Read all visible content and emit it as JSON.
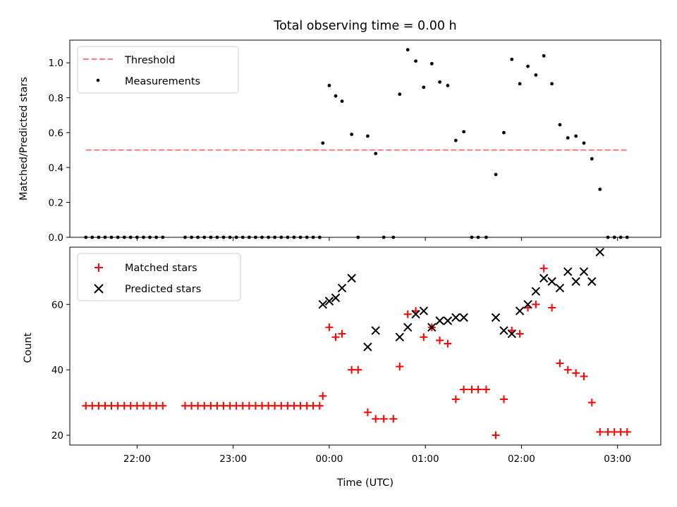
{
  "title": "Total observing time = 0.00 h",
  "colors": {
    "threshold": "#ff7f7f",
    "measurement": "#000000",
    "matched": "#ff0000",
    "predicted": "#000000"
  },
  "chart_data": [
    {
      "type": "scatter",
      "xlabel": "",
      "ylabel": "Matched/Predicted stars",
      "x_unit": "UTC time (hours, axis ticks 22:00 to 03:00)",
      "xlim": [
        21.3,
        27.45
      ],
      "ylim": [
        0.0,
        1.13
      ],
      "yticks": [
        0.0,
        0.2,
        0.4,
        0.6,
        0.8,
        1.0
      ],
      "ytick_labels": [
        "0.0",
        "0.2",
        "0.4",
        "0.6",
        "0.8",
        "1.0"
      ],
      "legend_position": "upper left",
      "threshold": {
        "name": "Threshold",
        "value": 0.5,
        "x_range": [
          21.467,
          27.1
        ]
      },
      "measurements": {
        "name": "Measurements",
        "x": [
          21.467,
          21.533,
          21.6,
          21.667,
          21.733,
          21.8,
          21.867,
          21.933,
          22.0,
          22.067,
          22.133,
          22.2,
          22.267,
          22.5,
          22.567,
          22.633,
          22.7,
          22.767,
          22.833,
          22.9,
          22.967,
          23.033,
          23.1,
          23.167,
          23.233,
          23.3,
          23.367,
          23.433,
          23.5,
          23.567,
          23.633,
          23.7,
          23.767,
          23.833,
          23.9,
          23.933,
          24.0,
          24.067,
          24.133,
          24.233,
          24.3,
          24.4,
          24.483,
          24.567,
          24.667,
          24.733,
          24.817,
          24.9,
          24.983,
          25.067,
          25.15,
          25.233,
          25.317,
          25.4,
          25.483,
          25.55,
          25.633,
          25.733,
          25.817,
          25.9,
          25.983,
          26.067,
          26.15,
          26.233,
          26.317,
          26.4,
          26.483,
          26.567,
          26.65,
          26.733,
          26.817,
          26.9,
          26.967,
          27.033,
          27.1
        ],
        "y": [
          0.0,
          0.0,
          0.0,
          0.0,
          0.0,
          0.0,
          0.0,
          0.0,
          0.0,
          0.0,
          0.0,
          0.0,
          0.0,
          0.0,
          0.0,
          0.0,
          0.0,
          0.0,
          0.0,
          0.0,
          0.0,
          0.0,
          0.0,
          0.0,
          0.0,
          0.0,
          0.0,
          0.0,
          0.0,
          0.0,
          0.0,
          0.0,
          0.0,
          0.0,
          0.0,
          0.54,
          0.87,
          0.81,
          0.78,
          0.59,
          0.0,
          0.58,
          0.48,
          0.0,
          0.0,
          0.82,
          1.075,
          1.01,
          0.86,
          0.995,
          0.89,
          0.87,
          0.555,
          0.605,
          0.0,
          0.0,
          0.0,
          0.36,
          0.6,
          1.02,
          0.88,
          0.98,
          0.93,
          1.04,
          0.88,
          0.645,
          0.57,
          0.58,
          0.54,
          0.45,
          0.275,
          0.0,
          0.0,
          0.0,
          0.0
        ]
      }
    },
    {
      "type": "scatter",
      "xlabel": "Time (UTC)",
      "ylabel": "Count",
      "x_unit": "UTC time (hours, axis ticks 22:00 to 03:00)",
      "xlim": [
        21.3,
        27.45
      ],
      "ylim": [
        17,
        77.5
      ],
      "yticks": [
        20,
        40,
        60
      ],
      "ytick_labels": [
        "20",
        "40",
        "60"
      ],
      "xticks": [
        22,
        23,
        24,
        25,
        26,
        27
      ],
      "xtick_labels": [
        "22:00",
        "23:00",
        "00:00",
        "01:00",
        "02:00",
        "03:00"
      ],
      "legend_position": "upper left",
      "series": [
        {
          "name": "Matched stars",
          "marker": "plus",
          "x": [
            21.467,
            21.533,
            21.6,
            21.667,
            21.733,
            21.8,
            21.867,
            21.933,
            22.0,
            22.067,
            22.133,
            22.2,
            22.267,
            22.5,
            22.567,
            22.633,
            22.7,
            22.767,
            22.833,
            22.9,
            22.967,
            23.033,
            23.1,
            23.167,
            23.233,
            23.3,
            23.367,
            23.433,
            23.5,
            23.567,
            23.633,
            23.7,
            23.767,
            23.833,
            23.9,
            23.933,
            24.0,
            24.067,
            24.133,
            24.233,
            24.3,
            24.4,
            24.483,
            24.567,
            24.667,
            24.733,
            24.817,
            24.9,
            24.983,
            25.067,
            25.15,
            25.233,
            25.317,
            25.4,
            25.483,
            25.55,
            25.633,
            25.733,
            25.817,
            25.9,
            25.983,
            26.067,
            26.15,
            26.233,
            26.317,
            26.4,
            26.483,
            26.567,
            26.65,
            26.733,
            26.817,
            26.9,
            26.967,
            27.033,
            27.1
          ],
          "y": [
            29,
            29,
            29,
            29,
            29,
            29,
            29,
            29,
            29,
            29,
            29,
            29,
            29,
            29,
            29,
            29,
            29,
            29,
            29,
            29,
            29,
            29,
            29,
            29,
            29,
            29,
            29,
            29,
            29,
            29,
            29,
            29,
            29,
            29,
            29,
            32,
            53,
            50,
            51,
            40,
            40,
            27,
            25,
            25,
            25,
            41,
            57,
            58,
            50,
            53,
            49,
            48,
            31,
            34,
            34,
            34,
            34,
            20,
            31,
            52,
            51,
            59,
            60,
            71,
            59,
            42,
            40,
            39,
            38,
            30,
            21,
            21,
            21,
            21,
            21
          ]
        },
        {
          "name": "Predicted stars",
          "marker": "x",
          "x": [
            23.933,
            24.0,
            24.067,
            24.133,
            24.233,
            24.4,
            24.483,
            24.733,
            24.817,
            24.9,
            24.983,
            25.067,
            25.15,
            25.233,
            25.317,
            25.4,
            25.733,
            25.817,
            25.9,
            25.983,
            26.067,
            26.15,
            26.233,
            26.317,
            26.4,
            26.483,
            26.567,
            26.65,
            26.733,
            26.817
          ],
          "y": [
            60,
            61,
            62,
            65,
            68,
            47,
            52,
            50,
            53,
            57,
            58,
            53,
            55,
            55,
            56,
            56,
            56,
            52,
            51,
            58,
            60,
            64,
            68,
            67,
            65,
            70,
            67,
            70,
            67,
            76
          ]
        }
      ]
    }
  ]
}
